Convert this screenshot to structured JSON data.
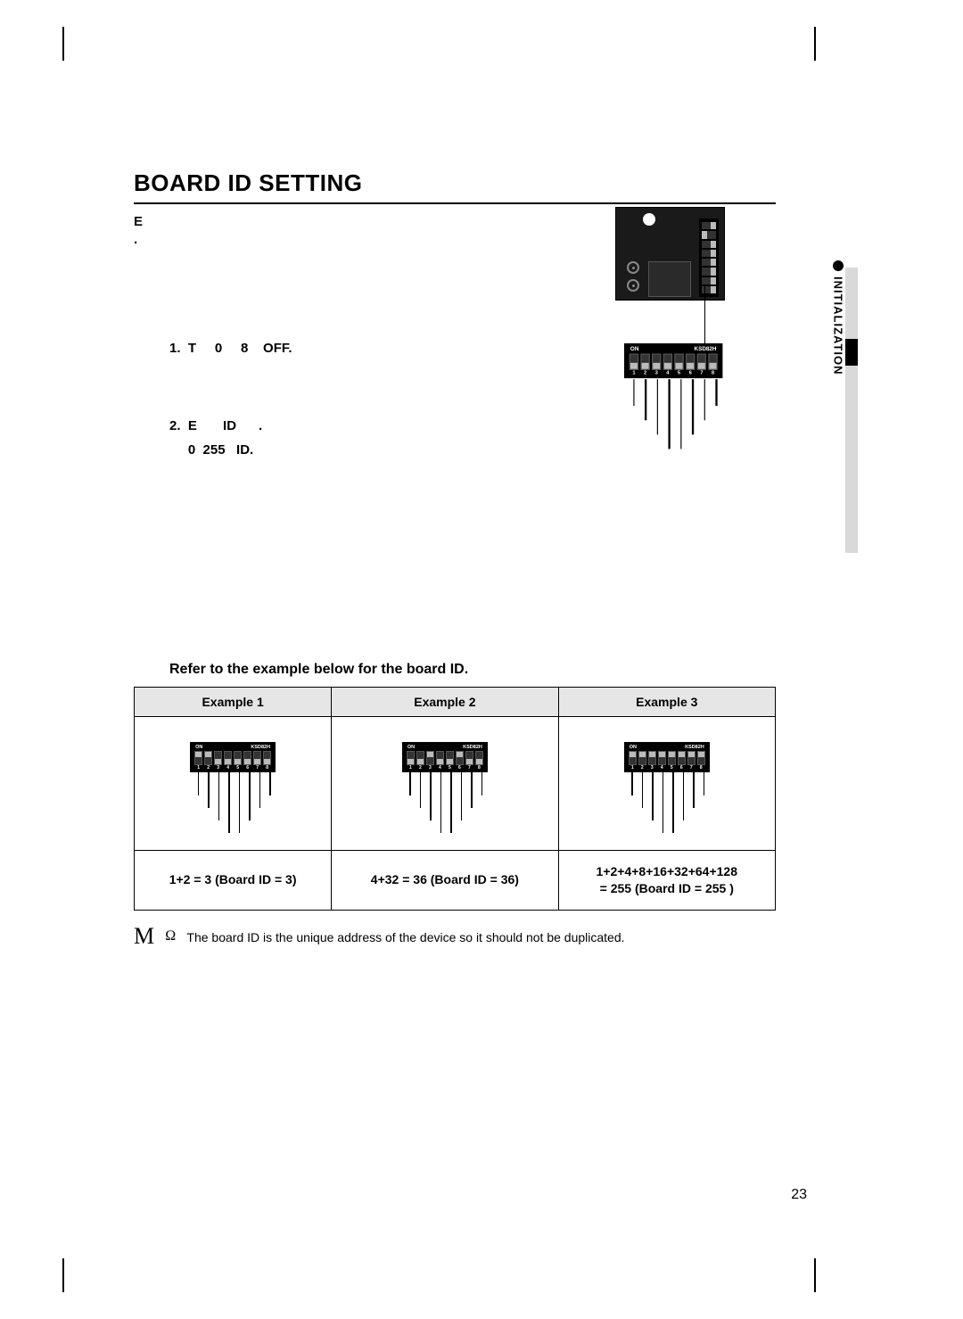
{
  "title": "BOARD ID SETTING",
  "intro": "E\n.",
  "steps": [
    "1.  T     0     8    OFF.",
    "2.  E       ID      .\n     0  255   ID."
  ],
  "subtitle": "Refer to the example below for the board ID.",
  "dip_label_on": "ON",
  "dip_label_model": "KSD82H",
  "dip_numbers": [
    "1",
    "2",
    "3",
    "4",
    "5",
    "6",
    "7",
    "8"
  ],
  "board_dip_states": [
    "off",
    "on",
    "off",
    "off",
    "off",
    "off",
    "off",
    "off"
  ],
  "callout_dip_states": [
    "off",
    "off",
    "off",
    "off",
    "off",
    "off",
    "off",
    "off"
  ],
  "callout_pin_heights": [
    26,
    40,
    54,
    68,
    68,
    54,
    40,
    26
  ],
  "examples": {
    "headers": [
      "Example 1",
      "Example 2",
      "Example 3"
    ],
    "dips": [
      {
        "states": [
          "on",
          "on",
          "off",
          "off",
          "off",
          "off",
          "off",
          "off"
        ],
        "pin_heights": [
          26,
          40,
          54,
          68,
          68,
          54,
          40,
          26
        ]
      },
      {
        "states": [
          "off",
          "off",
          "on",
          "off",
          "off",
          "on",
          "off",
          "off"
        ],
        "pin_heights": [
          26,
          40,
          54,
          68,
          68,
          54,
          40,
          26
        ]
      },
      {
        "states": [
          "on",
          "on",
          "on",
          "on",
          "on",
          "on",
          "on",
          "on"
        ],
        "pin_heights": [
          26,
          40,
          54,
          68,
          68,
          54,
          40,
          26
        ]
      }
    ],
    "results": [
      "1+2 = 3 (Board ID = 3)",
      "4+32 = 36 (Board ID = 36)",
      "1+2+4+8+16+32+64+128\n= 255 (Board ID = 255 )"
    ]
  },
  "note": {
    "mark": "M",
    "bullet": "Ω",
    "text": "The board ID is the unique address of the device so it should not be duplicated."
  },
  "side_label": "INITIALIZATION",
  "page_number": "23",
  "colors": {
    "table_header_bg": "#e6e6e6",
    "side_gray": "#d9d9d9",
    "dip_body": "#000000",
    "dip_knob": "#bbbbbb",
    "board_bg": "#1a1a1a"
  }
}
